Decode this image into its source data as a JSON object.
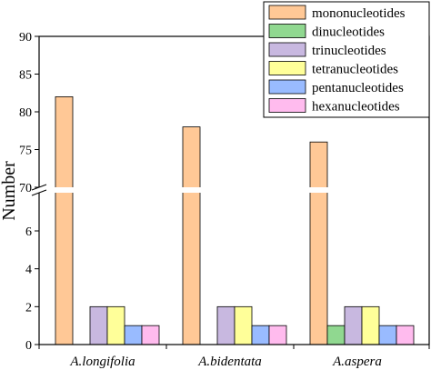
{
  "chart_data": {
    "type": "bar",
    "ylabel": "Number",
    "categories": [
      "A.longifolia",
      "A.bidentata",
      "A.aspera"
    ],
    "series": [
      {
        "name": "mononucleotides",
        "values": [
          82,
          78,
          76
        ],
        "color": "#FFC896"
      },
      {
        "name": "dinucleotides",
        "values": [
          0,
          0,
          1
        ],
        "color": "#90D890"
      },
      {
        "name": "trinucleotides",
        "values": [
          2,
          2,
          2
        ],
        "color": "#C8B8E0"
      },
      {
        "name": "tetranucleotides",
        "values": [
          2,
          2,
          2
        ],
        "color": "#FFFF99"
      },
      {
        "name": "pentanucleotides",
        "values": [
          1,
          1,
          1
        ],
        "color": "#99BBFF"
      },
      {
        "name": "hexanucleotides",
        "values": [
          1,
          1,
          1
        ],
        "color": "#FFBBEE"
      }
    ],
    "y_axis": {
      "lower_segment": {
        "range": [
          0,
          10
        ],
        "ticks": [
          0,
          2,
          4,
          6
        ]
      },
      "upper_segment": {
        "range": [
          70,
          90
        ],
        "ticks": [
          70,
          75,
          80,
          85,
          90
        ]
      },
      "broken": true
    },
    "grid": false,
    "legend_position": "top-right"
  }
}
